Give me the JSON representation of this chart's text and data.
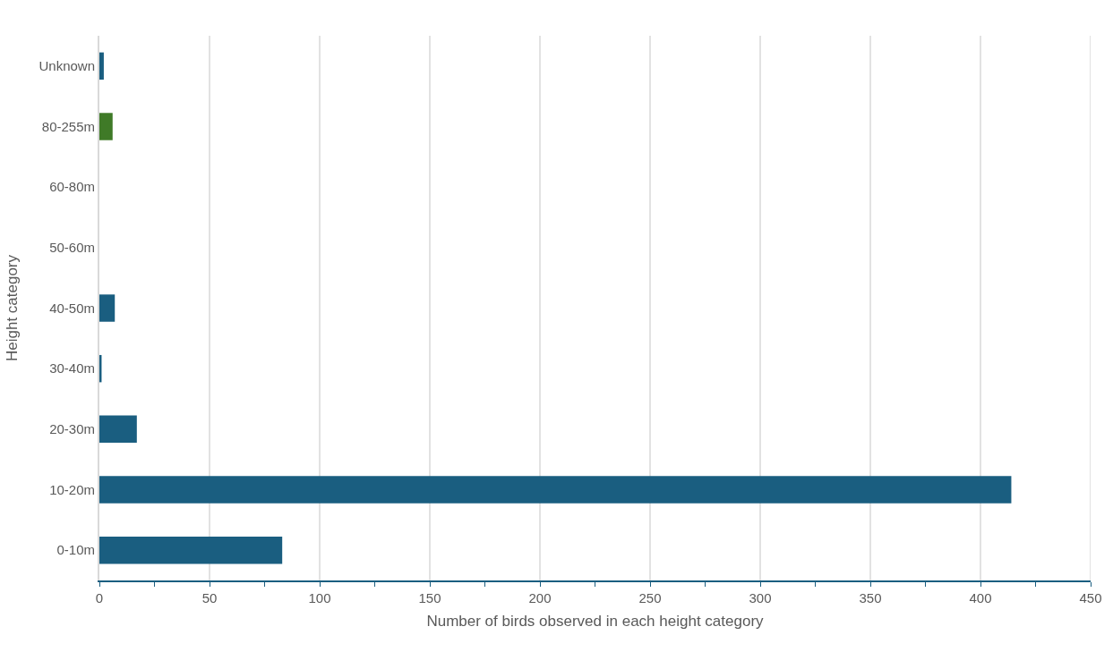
{
  "chart_data": {
    "type": "bar",
    "orientation": "horizontal",
    "xlabel": "Number of birds observed in each height category",
    "ylabel": "Height category",
    "categories": [
      "Unknown",
      "80-255m",
      "60-80m",
      "50-60m",
      "40-50m",
      "30-40m",
      "20-30m",
      "10-20m",
      "0-10m"
    ],
    "values": [
      2,
      6,
      0,
      0,
      7,
      1,
      17,
      414,
      83
    ],
    "colors": [
      "#1a5e80",
      "#3f7a27",
      "#1a5e80",
      "#1a5e80",
      "#1a5e80",
      "#1a5e80",
      "#1a5e80",
      "#1a5e80",
      "#1a5e80"
    ],
    "xlim": [
      0,
      450
    ],
    "xticks": [
      0,
      {
        "value": 25,
        "label": null
      },
      50,
      {
        "value": 75,
        "label": null
      },
      100,
      {
        "value": 125,
        "label": null
      },
      150,
      {
        "value": 175,
        "label": null
      },
      200,
      {
        "value": 225,
        "label": null
      },
      250,
      {
        "value": 275,
        "label": null
      },
      300,
      {
        "value": 325,
        "label": null
      },
      350,
      {
        "value": 375,
        "label": null
      },
      400,
      {
        "value": 425,
        "label": null
      },
      450
    ],
    "grid": "x",
    "legend": false
  }
}
